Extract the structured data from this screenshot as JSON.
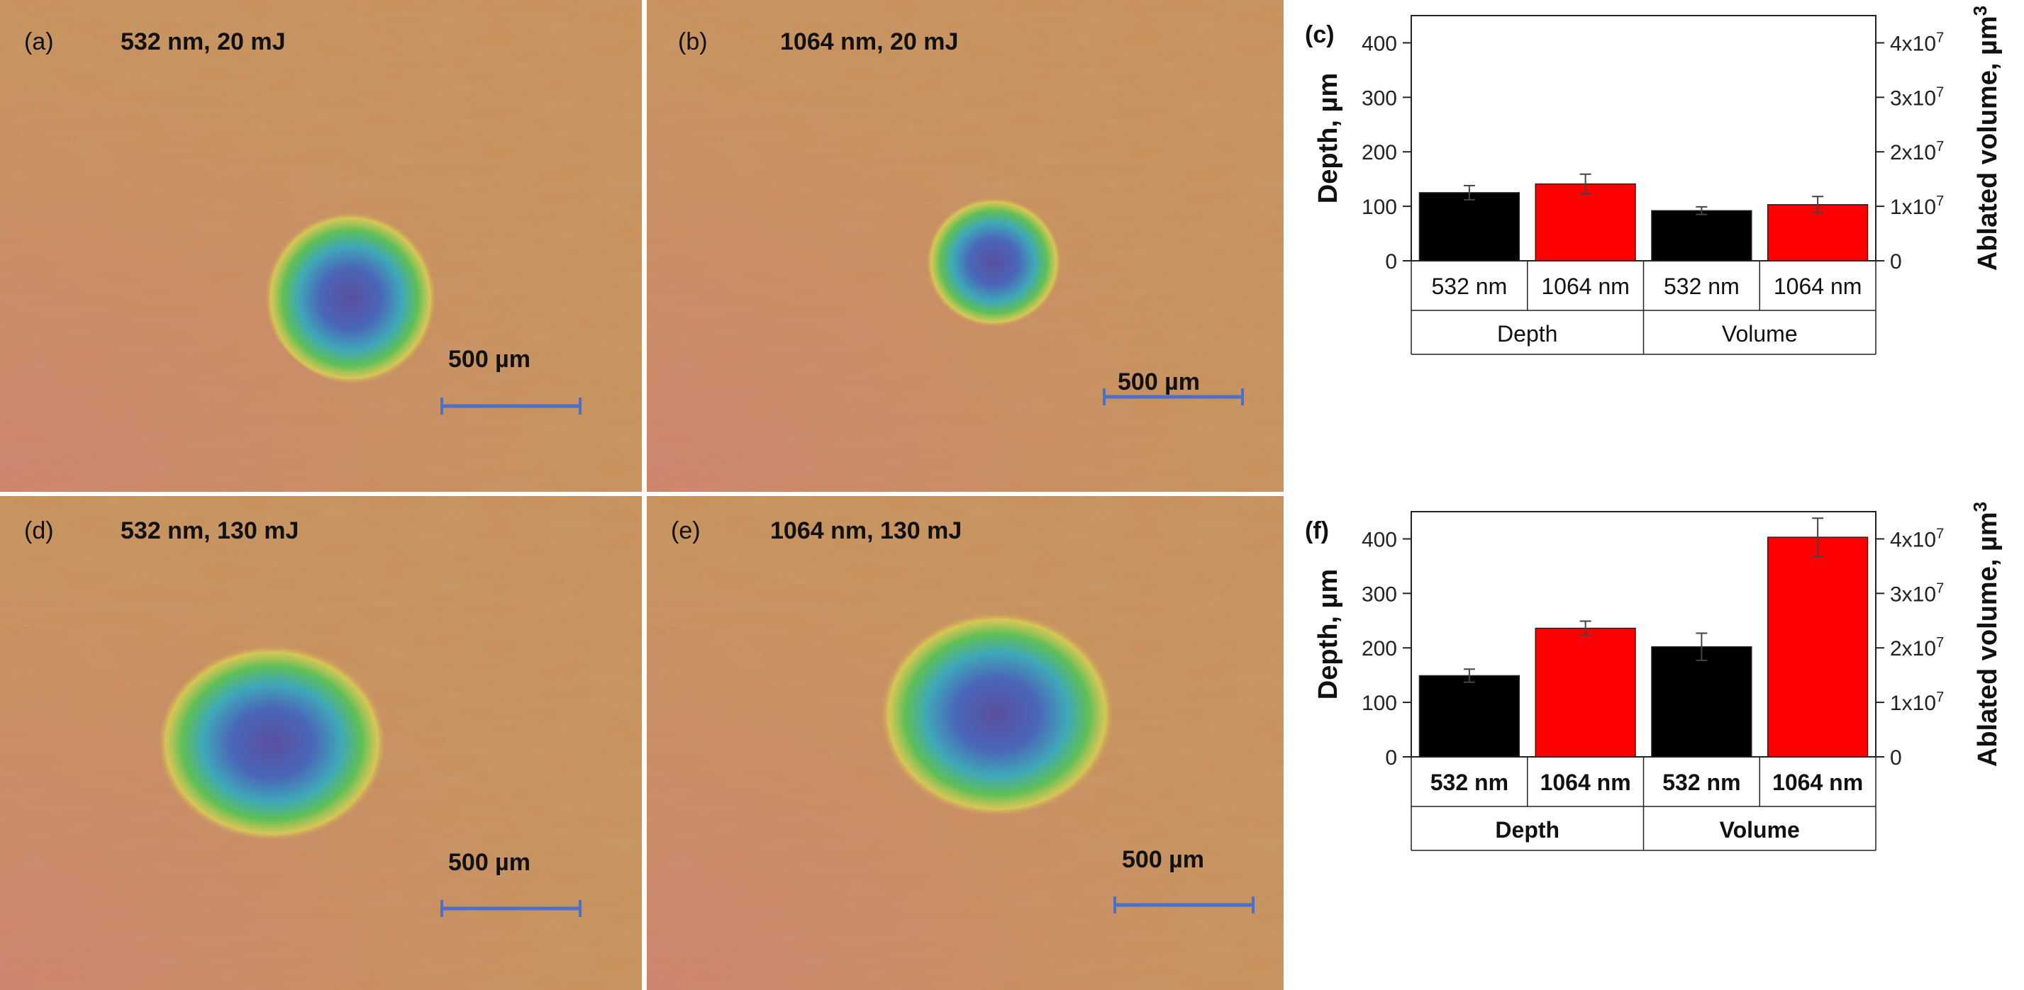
{
  "panels": {
    "a": {
      "label": "(a)",
      "title": "532 nm, 20 mJ",
      "scale": "500 µm"
    },
    "b": {
      "label": "(b)",
      "title": "1064 nm, 20 mJ",
      "scale": "500 µm"
    },
    "d": {
      "label": "(d)",
      "title": "532 nm, 130 mJ",
      "scale": "500 µm"
    },
    "e": {
      "label": "(e)",
      "title": "1064 nm, 130 mJ",
      "scale": "500 µm"
    }
  },
  "colors": {
    "wood": "#c8905a",
    "scale_bar": "#4a70c8",
    "crater_blue": "#4a62b8",
    "crater_cyan": "#3fb0b8",
    "crater_green": "#5fbf55",
    "crater_yellow": "#d9cf55",
    "bar_532": "#000000",
    "bar_1064": "#ff0000"
  },
  "chart_data": [
    {
      "panel": "(c)",
      "type": "bar",
      "ylabel_left": "Depth, µm",
      "ylabel_right": "Ablated volume, µm",
      "ylabel_right_sup": "3",
      "ylim": [
        0,
        450
      ],
      "yticks": [
        0,
        100,
        200,
        300,
        400
      ],
      "right_ylim": [
        0,
        45000000
      ],
      "right_ticks": [
        {
          "value": 0,
          "mant": "0",
          "exp": ""
        },
        {
          "value": 10000000,
          "mant": "1x10",
          "exp": "7"
        },
        {
          "value": 20000000,
          "mant": "2x10",
          "exp": "7"
        },
        {
          "value": 30000000,
          "mant": "3x10",
          "exp": "7"
        },
        {
          "value": 40000000,
          "mant": "4x10",
          "exp": "7"
        }
      ],
      "bold_labels": false,
      "groups": [
        "Depth",
        "Volume"
      ],
      "bars": [
        {
          "category": "532 nm",
          "group": "Depth",
          "axis": "left",
          "value": 125,
          "error": 13
        },
        {
          "category": "1064 nm",
          "group": "Depth",
          "axis": "left",
          "value": 141,
          "error": 18
        },
        {
          "category": "532 nm",
          "group": "Volume",
          "axis": "right",
          "value": 9200000,
          "error": 700000
        },
        {
          "category": "1064 nm",
          "group": "Volume",
          "axis": "right",
          "value": 10300000,
          "error": 1500000
        }
      ]
    },
    {
      "panel": "(f)",
      "type": "bar",
      "ylabel_left": "Depth, µm",
      "ylabel_right": "Ablated volume, µm",
      "ylabel_right_sup": "3",
      "ylim": [
        0,
        450
      ],
      "yticks": [
        0,
        100,
        200,
        300,
        400
      ],
      "right_ylim": [
        0,
        45000000
      ],
      "right_ticks": [
        {
          "value": 0,
          "mant": "0",
          "exp": ""
        },
        {
          "value": 10000000,
          "mant": "1x10",
          "exp": "7"
        },
        {
          "value": 20000000,
          "mant": "2x10",
          "exp": "7"
        },
        {
          "value": 30000000,
          "mant": "3x10",
          "exp": "7"
        },
        {
          "value": 40000000,
          "mant": "4x10",
          "exp": "7"
        }
      ],
      "bold_labels": true,
      "groups": [
        "Depth",
        "Volume"
      ],
      "bars": [
        {
          "category": "532 nm",
          "group": "Depth",
          "axis": "left",
          "value": 149,
          "error": 12
        },
        {
          "category": "1064 nm",
          "group": "Depth",
          "axis": "left",
          "value": 236,
          "error": 13
        },
        {
          "category": "532 nm",
          "group": "Volume",
          "axis": "right",
          "value": 20200000,
          "error": 2500000
        },
        {
          "category": "1064 nm",
          "group": "Volume",
          "axis": "right",
          "value": 40300000,
          "error": 3500000
        }
      ]
    }
  ]
}
